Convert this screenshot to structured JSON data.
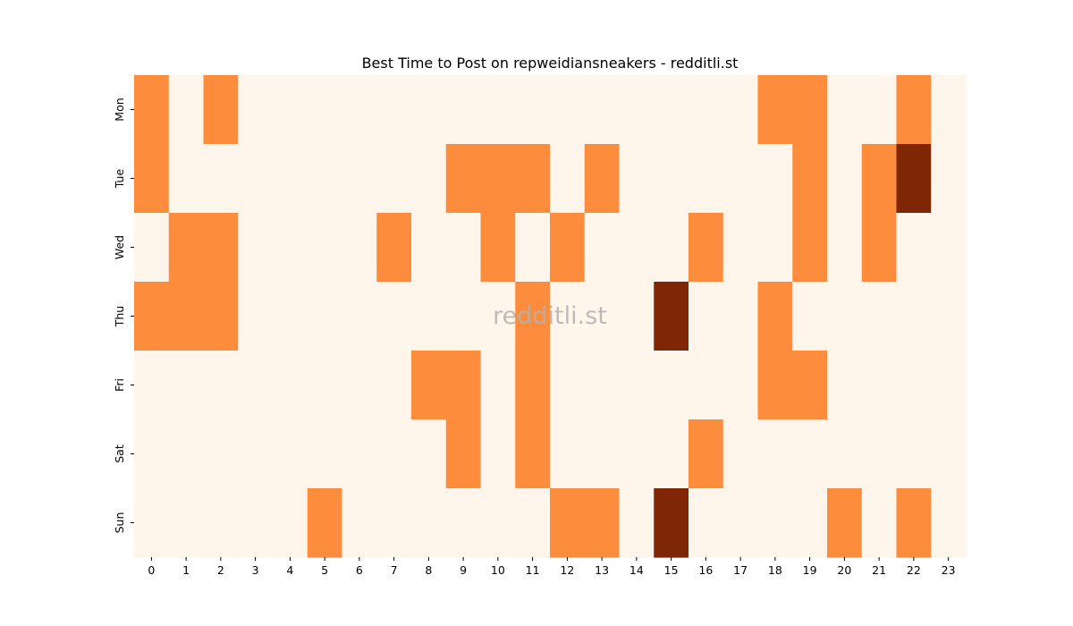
{
  "chart_data": {
    "type": "heatmap",
    "title": "Best Time to Post on repweidiansneakers - redditli.st",
    "watermark": "redditli.st",
    "x_labels": [
      "0",
      "1",
      "2",
      "3",
      "4",
      "5",
      "6",
      "7",
      "8",
      "9",
      "10",
      "11",
      "12",
      "13",
      "14",
      "15",
      "16",
      "17",
      "18",
      "19",
      "20",
      "21",
      "22",
      "23"
    ],
    "y_labels": [
      "Mon",
      "Tue",
      "Wed",
      "Thu",
      "Fri",
      "Sat",
      "Sun"
    ],
    "values": [
      [
        1,
        0,
        1,
        0,
        0,
        0,
        0,
        0,
        0,
        0,
        0,
        0,
        0,
        0,
        0,
        0,
        0,
        0,
        1,
        1,
        0,
        0,
        1,
        0
      ],
      [
        1,
        0,
        0,
        0,
        0,
        0,
        0,
        0,
        0,
        1,
        1,
        1,
        0,
        1,
        0,
        0,
        0,
        0,
        0,
        1,
        0,
        1,
        2,
        0
      ],
      [
        0,
        1,
        1,
        0,
        0,
        0,
        0,
        1,
        0,
        0,
        1,
        0,
        1,
        0,
        0,
        0,
        1,
        0,
        0,
        1,
        0,
        1,
        0,
        0
      ],
      [
        1,
        1,
        1,
        0,
        0,
        0,
        0,
        0,
        0,
        0,
        0,
        1,
        0,
        0,
        0,
        2,
        0,
        0,
        1,
        0,
        0,
        0,
        0,
        0
      ],
      [
        0,
        0,
        0,
        0,
        0,
        0,
        0,
        0,
        1,
        1,
        0,
        1,
        0,
        0,
        0,
        0,
        0,
        0,
        1,
        1,
        0,
        0,
        0,
        0
      ],
      [
        0,
        0,
        0,
        0,
        0,
        0,
        0,
        0,
        0,
        1,
        0,
        1,
        0,
        0,
        0,
        0,
        1,
        0,
        0,
        0,
        0,
        0,
        0,
        0
      ],
      [
        0,
        0,
        0,
        0,
        0,
        1,
        0,
        0,
        0,
        0,
        0,
        0,
        1,
        1,
        0,
        2,
        0,
        0,
        0,
        0,
        1,
        0,
        1,
        0
      ]
    ],
    "colors": {
      "0": "#fff5eb",
      "1": "#fd8d3c",
      "2": "#7f2704"
    }
  }
}
